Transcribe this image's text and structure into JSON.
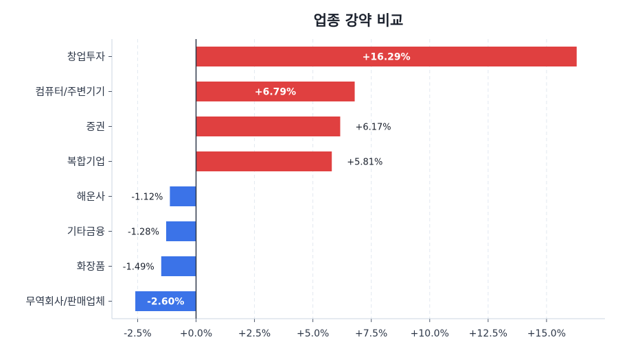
{
  "chart_data": {
    "type": "bar",
    "orientation": "horizontal",
    "title": "업종 강약 비교",
    "categories": [
      "창업투자",
      "컴퓨터/주변기기",
      "증권",
      "복합기업",
      "해운사",
      "기타금융",
      "화장품",
      "무역회사/판매업체"
    ],
    "values": [
      16.29,
      6.79,
      6.17,
      5.81,
      -1.12,
      -1.28,
      -1.49,
      -2.6
    ],
    "data_labels": [
      "+16.29%",
      "+6.79%",
      "+6.17%",
      "+5.81%",
      "-1.12%",
      "-1.28%",
      "-1.49%",
      "-2.60%"
    ],
    "xlim": [
      -3.6,
      17.5
    ],
    "xticks": [
      -2.5,
      0,
      2.5,
      5,
      7.5,
      10,
      12.5,
      15
    ],
    "xtick_labels": [
      "-2.5%",
      "+0.0%",
      "+2.5%",
      "+5.0%",
      "+7.5%",
      "+10.0%",
      "+12.5%",
      "+15.0%"
    ],
    "xlabel": "",
    "ylabel": "",
    "grid": "vertical dashed",
    "colors": {
      "positive": "#e04040",
      "negative": "#3b73e8",
      "zero_line": "#2d3748"
    }
  }
}
